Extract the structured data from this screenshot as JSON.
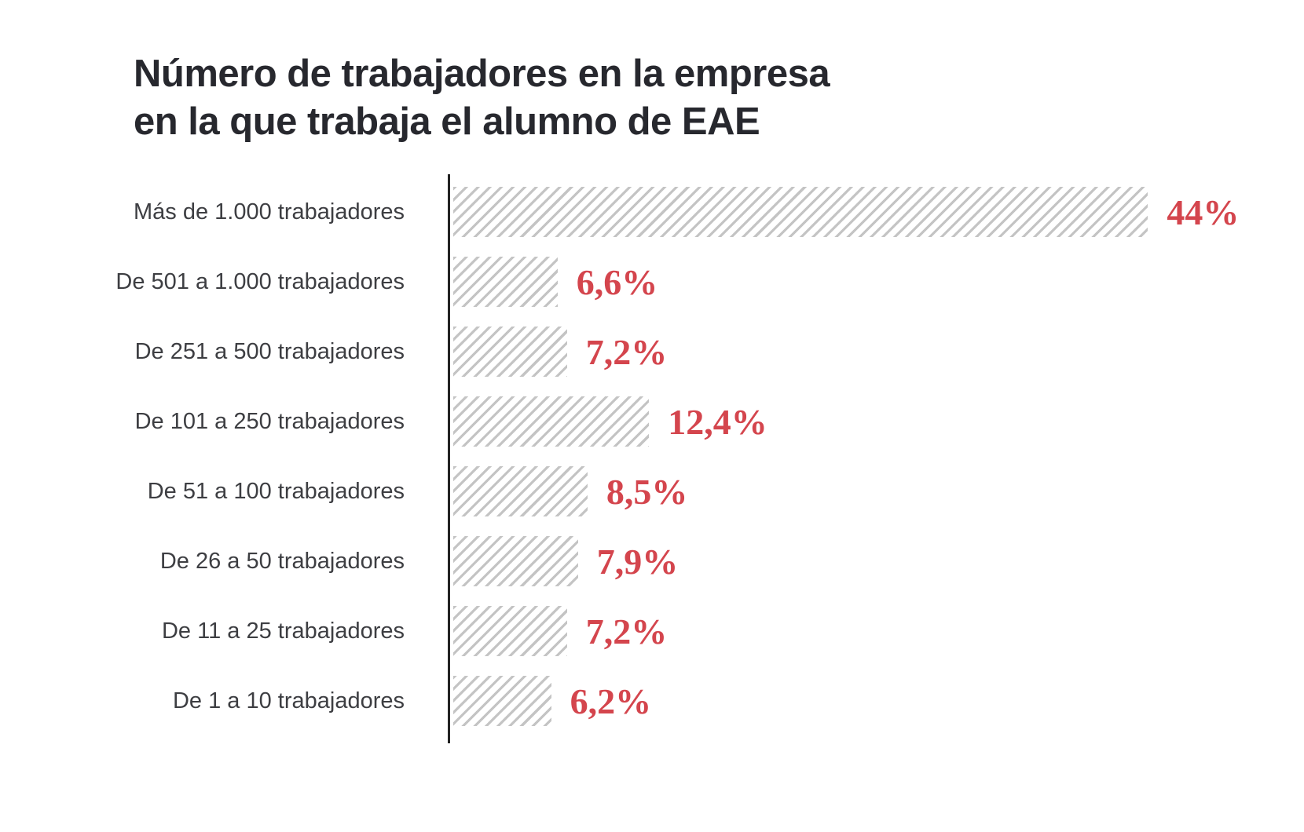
{
  "page": {
    "background_color": "#ffffff"
  },
  "chart_data": {
    "type": "bar",
    "orientation": "horizontal",
    "title": "Número de trabajadores en la empresa en la que trabaja el alumno de EAE",
    "title_lines": [
      "Número de trabajadores en la empresa",
      "en la que trabaja el alumno de EAE"
    ],
    "categories": [
      "Más de 1.000 trabajadores",
      "De 501 a 1.000 trabajadores",
      "De 251 a 500 trabajadores",
      "De 101 a 250 trabajadores",
      "De 51 a 100 trabajadores",
      "De 26 a 50 trabajadores",
      "De 11 a 25 trabajadores",
      "De 1 a 10 trabajadores"
    ],
    "values": [
      44,
      6.6,
      7.2,
      12.4,
      8.5,
      7.9,
      7.2,
      6.2
    ],
    "value_labels": [
      "44%",
      "6,6%",
      "7,2%",
      "12,4%",
      "8,5%",
      "7,9%",
      "7,2%",
      "6,2%"
    ],
    "xlabel": "",
    "ylabel": "",
    "xlim": [
      0,
      44
    ],
    "grid": false,
    "legend": null,
    "bar_style": "diagonal-hatch",
    "colors": {
      "title": "#27282e",
      "category_label": "#3d3e42",
      "value_label": "#d4454d",
      "hatch_stripe": "#c4c4c4",
      "bar_background": "#ffffff",
      "axis_line": "#232323",
      "background": "#ffffff"
    }
  }
}
